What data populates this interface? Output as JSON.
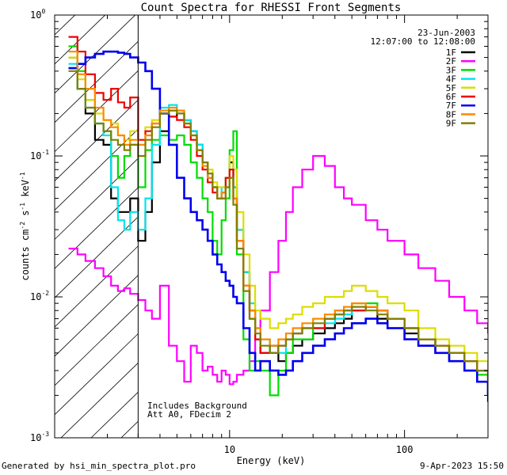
{
  "chart_data": {
    "type": "line",
    "title": "Count Spectra for RHESSI Front Segments",
    "xlabel": "Energy (keV)",
    "ylabel_base": "counts cm",
    "ylabel_exp1": "-2",
    "ylabel_mid1": " s",
    "ylabel_exp2": "-1",
    "ylabel_mid2": " keV",
    "ylabel_exp3": "-1",
    "x_scale": "log",
    "y_scale": "log",
    "xlim": [
      1.0,
      300.0
    ],
    "ylim": [
      0.001,
      1.0
    ],
    "x_ticks": [
      {
        "value": 10,
        "label": "10"
      },
      {
        "value": 100,
        "label": "100"
      }
    ],
    "y_ticks": [
      {
        "value": 0.001,
        "base": "10",
        "exp": "-3"
      },
      {
        "value": 0.01,
        "base": "10",
        "exp": "-2"
      },
      {
        "value": 0.1,
        "base": "10",
        "exp": "-1"
      },
      {
        "value": 1.0,
        "base": "10",
        "exp": "0"
      }
    ],
    "attenuator_cutoff_keV": 3.0,
    "hatched_region": [
      1.0,
      3.0
    ],
    "legend_position": "top-right",
    "date": "23-Jun-2003",
    "time_range": "12:07:00 to 12:08:00",
    "annotation_lines": [
      "Includes Background",
      "Att A0, FDecim 2"
    ],
    "series": [
      {
        "name": "1F",
        "color": "#000000",
        "x": [
          1.2,
          1.35,
          1.5,
          1.7,
          1.9,
          2.1,
          2.3,
          2.5,
          2.7,
          3.0,
          3.3,
          3.6,
          4.0,
          4.5,
          5.0,
          5.5,
          6.0,
          6.5,
          7.0,
          7.5,
          8.0,
          8.5,
          9.0,
          9.5,
          10.0,
          10.5,
          11.0,
          12.0,
          13.0,
          14.0,
          15.0,
          17.0,
          19.0,
          21.0,
          23.0,
          26.0,
          30.0,
          35.0,
          40.0,
          45.0,
          50.0,
          60.0,
          70.0,
          80.0,
          100.0,
          120.0,
          150.0,
          180.0,
          220.0,
          260.0,
          300.0
        ],
        "y": [
          0.5,
          0.3,
          0.2,
          0.13,
          0.12,
          0.05,
          0.04,
          0.04,
          0.05,
          0.025,
          0.04,
          0.09,
          0.15,
          0.19,
          0.2,
          0.18,
          0.15,
          0.12,
          0.09,
          0.07,
          0.06,
          0.05,
          0.055,
          0.07,
          0.09,
          0.06,
          0.03,
          0.015,
          0.008,
          0.005,
          0.004,
          0.0045,
          0.0035,
          0.004,
          0.0045,
          0.005,
          0.0055,
          0.006,
          0.0065,
          0.007,
          0.008,
          0.0085,
          0.007,
          0.006,
          0.0055,
          0.005,
          0.004,
          0.0035,
          0.003,
          0.0025,
          0.0018
        ]
      },
      {
        "name": "2F",
        "color": "#ff00ff",
        "x": [
          1.2,
          1.35,
          1.5,
          1.7,
          1.9,
          2.1,
          2.3,
          2.5,
          2.7,
          3.0,
          3.3,
          3.6,
          4.0,
          4.5,
          5.0,
          5.5,
          6.0,
          6.5,
          7.0,
          7.5,
          8.0,
          8.5,
          9.0,
          9.5,
          10.0,
          10.5,
          11.0,
          12.0,
          13.0,
          14.0,
          15.0,
          17.0,
          19.0,
          21.0,
          23.0,
          26.0,
          30.0,
          35.0,
          40.0,
          45.0,
          50.0,
          60.0,
          70.0,
          80.0,
          100.0,
          120.0,
          150.0,
          180.0,
          220.0,
          260.0,
          300.0
        ],
        "y": [
          0.022,
          0.02,
          0.018,
          0.016,
          0.014,
          0.012,
          0.011,
          0.0115,
          0.0105,
          0.0095,
          0.008,
          0.007,
          0.012,
          0.0045,
          0.0035,
          0.0025,
          0.0045,
          0.004,
          0.003,
          0.0032,
          0.0028,
          0.0025,
          0.003,
          0.0028,
          0.0024,
          0.0025,
          0.0028,
          0.003,
          0.0035,
          0.005,
          0.008,
          0.015,
          0.025,
          0.04,
          0.06,
          0.08,
          0.1,
          0.085,
          0.06,
          0.05,
          0.045,
          0.035,
          0.03,
          0.025,
          0.02,
          0.016,
          0.013,
          0.01,
          0.008,
          0.0065,
          0.0055
        ]
      },
      {
        "name": "3F",
        "color": "#00dd00",
        "x": [
          1.2,
          1.35,
          1.5,
          1.7,
          1.9,
          2.1,
          2.3,
          2.5,
          2.7,
          3.0,
          3.3,
          3.6,
          4.0,
          4.5,
          5.0,
          5.5,
          6.0,
          6.5,
          7.0,
          7.5,
          8.0,
          8.5,
          9.0,
          9.5,
          10.0,
          10.5,
          11.0,
          12.0,
          13.0,
          14.0,
          15.0,
          17.0,
          19.0,
          21.0,
          23.0,
          26.0,
          30.0,
          35.0,
          40.0,
          45.0,
          50.0,
          60.0,
          70.0,
          80.0,
          100.0,
          120.0,
          150.0,
          180.0,
          220.0,
          260.0,
          300.0
        ],
        "y": [
          0.6,
          0.4,
          0.25,
          0.17,
          0.15,
          0.1,
          0.07,
          0.1,
          0.12,
          0.06,
          0.11,
          0.13,
          0.14,
          0.13,
          0.14,
          0.12,
          0.09,
          0.07,
          0.05,
          0.04,
          0.025,
          0.02,
          0.035,
          0.05,
          0.11,
          0.15,
          0.02,
          0.005,
          0.003,
          0.0035,
          0.003,
          0.002,
          0.003,
          0.004,
          0.005,
          0.005,
          0.006,
          0.007,
          0.008,
          0.008,
          0.009,
          0.009,
          0.008,
          0.007,
          0.006,
          0.005,
          0.0045,
          0.004,
          0.0035,
          0.0028,
          0.002
        ]
      },
      {
        "name": "4F",
        "color": "#00e5ee",
        "x": [
          1.2,
          1.35,
          1.5,
          1.7,
          1.9,
          2.1,
          2.3,
          2.5,
          2.7,
          3.0,
          3.3,
          3.6,
          4.0,
          4.5,
          5.0,
          5.5,
          6.0,
          6.5,
          7.0,
          7.5,
          8.0,
          8.5,
          9.0,
          9.5,
          10.0,
          10.5,
          11.0,
          12.0,
          13.0,
          14.0,
          15.0,
          17.0,
          19.0,
          21.0,
          23.0,
          26.0,
          30.0,
          35.0,
          40.0,
          45.0,
          50.0,
          60.0,
          70.0,
          80.0,
          100.0,
          120.0,
          150.0,
          180.0,
          220.0,
          260.0,
          300.0
        ],
        "y": [
          0.45,
          0.3,
          0.22,
          0.17,
          0.14,
          0.06,
          0.035,
          0.03,
          0.04,
          0.03,
          0.05,
          0.12,
          0.22,
          0.23,
          0.21,
          0.18,
          0.15,
          0.12,
          0.09,
          0.075,
          0.06,
          0.05,
          0.06,
          0.07,
          0.08,
          0.06,
          0.03,
          0.015,
          0.009,
          0.006,
          0.005,
          0.004,
          0.004,
          0.005,
          0.0055,
          0.006,
          0.006,
          0.0065,
          0.007,
          0.0075,
          0.008,
          0.0085,
          0.008,
          0.007,
          0.006,
          0.005,
          0.0045,
          0.004,
          0.0035,
          0.003,
          0.0025
        ]
      },
      {
        "name": "5F",
        "color": "#dddd00",
        "x": [
          1.2,
          1.35,
          1.5,
          1.7,
          1.9,
          2.1,
          2.3,
          2.5,
          2.7,
          3.0,
          3.3,
          3.6,
          4.0,
          4.5,
          5.0,
          5.5,
          6.0,
          6.5,
          7.0,
          7.5,
          8.0,
          8.5,
          9.0,
          9.5,
          10.0,
          10.5,
          11.0,
          12.0,
          13.0,
          14.0,
          15.0,
          17.0,
          19.0,
          21.0,
          23.0,
          26.0,
          30.0,
          35.0,
          40.0,
          45.0,
          50.0,
          60.0,
          70.0,
          80.0,
          100.0,
          120.0,
          150.0,
          180.0,
          220.0,
          260.0,
          300.0
        ],
        "y": [
          0.5,
          0.35,
          0.25,
          0.2,
          0.18,
          0.17,
          0.14,
          0.13,
          0.15,
          0.12,
          0.16,
          0.18,
          0.2,
          0.21,
          0.2,
          0.17,
          0.14,
          0.11,
          0.09,
          0.08,
          0.065,
          0.06,
          0.06,
          0.07,
          0.1,
          0.08,
          0.04,
          0.02,
          0.012,
          0.008,
          0.007,
          0.006,
          0.0065,
          0.007,
          0.0075,
          0.0085,
          0.009,
          0.01,
          0.01,
          0.011,
          0.012,
          0.011,
          0.01,
          0.009,
          0.008,
          0.006,
          0.005,
          0.0045,
          0.004,
          0.0035,
          0.003
        ]
      },
      {
        "name": "6F",
        "color": "#ee0000",
        "x": [
          1.2,
          1.35,
          1.5,
          1.7,
          1.9,
          2.1,
          2.3,
          2.5,
          2.7,
          3.0,
          3.3,
          3.6,
          4.0,
          4.5,
          5.0,
          5.5,
          6.0,
          6.5,
          7.0,
          7.5,
          8.0,
          8.5,
          9.0,
          9.5,
          10.0,
          10.5,
          11.0,
          12.0,
          13.0,
          14.0,
          15.0,
          17.0,
          19.0,
          21.0,
          23.0,
          26.0,
          30.0,
          35.0,
          40.0,
          45.0,
          50.0,
          60.0,
          70.0,
          80.0,
          100.0,
          120.0,
          150.0,
          180.0,
          220.0,
          260.0,
          300.0
        ],
        "y": [
          0.7,
          0.55,
          0.38,
          0.28,
          0.25,
          0.3,
          0.24,
          0.22,
          0.26,
          0.13,
          0.15,
          0.17,
          0.2,
          0.19,
          0.18,
          0.16,
          0.13,
          0.1,
          0.08,
          0.065,
          0.055,
          0.05,
          0.05,
          0.07,
          0.08,
          0.05,
          0.025,
          0.012,
          0.007,
          0.005,
          0.004,
          0.004,
          0.0045,
          0.005,
          0.0055,
          0.006,
          0.006,
          0.007,
          0.0075,
          0.008,
          0.008,
          0.0085,
          0.008,
          0.007,
          0.006,
          0.005,
          0.0045,
          0.004,
          0.0035,
          0.003,
          0.0025
        ]
      },
      {
        "name": "7F",
        "color": "#0000ee",
        "x": [
          1.2,
          1.35,
          1.5,
          1.7,
          1.9,
          2.1,
          2.3,
          2.5,
          2.7,
          3.0,
          3.3,
          3.6,
          4.0,
          4.5,
          5.0,
          5.5,
          6.0,
          6.5,
          7.0,
          7.5,
          8.0,
          8.5,
          9.0,
          9.5,
          10.0,
          10.5,
          11.0,
          12.0,
          13.0,
          14.0,
          15.0,
          17.0,
          19.0,
          21.0,
          23.0,
          26.0,
          30.0,
          35.0,
          40.0,
          45.0,
          50.0,
          60.0,
          70.0,
          80.0,
          100.0,
          120.0,
          150.0,
          180.0,
          220.0,
          260.0,
          300.0
        ],
        "y": [
          0.42,
          0.45,
          0.5,
          0.53,
          0.55,
          0.55,
          0.54,
          0.53,
          0.5,
          0.46,
          0.4,
          0.3,
          0.2,
          0.12,
          0.07,
          0.05,
          0.04,
          0.035,
          0.03,
          0.025,
          0.02,
          0.017,
          0.015,
          0.013,
          0.012,
          0.01,
          0.009,
          0.006,
          0.004,
          0.003,
          0.0035,
          0.003,
          0.0028,
          0.003,
          0.0035,
          0.004,
          0.0045,
          0.005,
          0.0055,
          0.006,
          0.0065,
          0.007,
          0.0065,
          0.006,
          0.005,
          0.0045,
          0.004,
          0.0035,
          0.003,
          0.0025,
          0.002
        ]
      },
      {
        "name": "8F",
        "color": "#ff8800",
        "x": [
          1.2,
          1.35,
          1.5,
          1.7,
          1.9,
          2.1,
          2.3,
          2.5,
          2.7,
          3.0,
          3.3,
          3.6,
          4.0,
          4.5,
          5.0,
          5.5,
          6.0,
          6.5,
          7.0,
          7.5,
          8.0,
          8.5,
          9.0,
          9.5,
          10.0,
          10.5,
          11.0,
          12.0,
          13.0,
          14.0,
          15.0,
          17.0,
          19.0,
          21.0,
          23.0,
          26.0,
          30.0,
          35.0,
          40.0,
          45.0,
          50.0,
          60.0,
          70.0,
          80.0,
          100.0,
          120.0,
          150.0,
          180.0,
          220.0,
          260.0,
          300.0
        ],
        "y": [
          0.55,
          0.38,
          0.3,
          0.22,
          0.18,
          0.16,
          0.14,
          0.12,
          0.13,
          0.12,
          0.14,
          0.17,
          0.21,
          0.22,
          0.21,
          0.17,
          0.14,
          0.11,
          0.085,
          0.07,
          0.06,
          0.05,
          0.055,
          0.06,
          0.07,
          0.05,
          0.025,
          0.012,
          0.008,
          0.006,
          0.005,
          0.0045,
          0.005,
          0.0055,
          0.006,
          0.0065,
          0.007,
          0.0075,
          0.008,
          0.0085,
          0.009,
          0.0085,
          0.008,
          0.007,
          0.006,
          0.005,
          0.0045,
          0.004,
          0.0035,
          0.003,
          0.0025
        ]
      },
      {
        "name": "9F",
        "color": "#808000",
        "x": [
          1.2,
          1.35,
          1.5,
          1.7,
          1.9,
          2.1,
          2.3,
          2.5,
          2.7,
          3.0,
          3.3,
          3.6,
          4.0,
          4.5,
          5.0,
          5.5,
          6.0,
          6.5,
          7.0,
          7.5,
          8.0,
          8.5,
          9.0,
          9.5,
          10.0,
          10.5,
          11.0,
          12.0,
          13.0,
          14.0,
          15.0,
          17.0,
          19.0,
          21.0,
          23.0,
          26.0,
          30.0,
          35.0,
          40.0,
          45.0,
          50.0,
          60.0,
          70.0,
          80.0,
          100.0,
          120.0,
          150.0,
          180.0,
          220.0,
          260.0,
          300.0
        ],
        "y": [
          0.4,
          0.3,
          0.22,
          0.17,
          0.15,
          0.13,
          0.12,
          0.11,
          0.12,
          0.1,
          0.13,
          0.16,
          0.2,
          0.21,
          0.2,
          0.17,
          0.14,
          0.11,
          0.09,
          0.075,
          0.06,
          0.05,
          0.05,
          0.06,
          0.07,
          0.045,
          0.022,
          0.011,
          0.007,
          0.0055,
          0.0045,
          0.004,
          0.0045,
          0.005,
          0.0055,
          0.006,
          0.0065,
          0.007,
          0.0075,
          0.008,
          0.0085,
          0.008,
          0.0075,
          0.007,
          0.006,
          0.005,
          0.0045,
          0.004,
          0.0035,
          0.003,
          0.0025
        ]
      }
    ]
  },
  "footer": {
    "left": "Generated by hsi_min_spectra_plot.pro",
    "right": "9-Apr-2023 15:50"
  }
}
